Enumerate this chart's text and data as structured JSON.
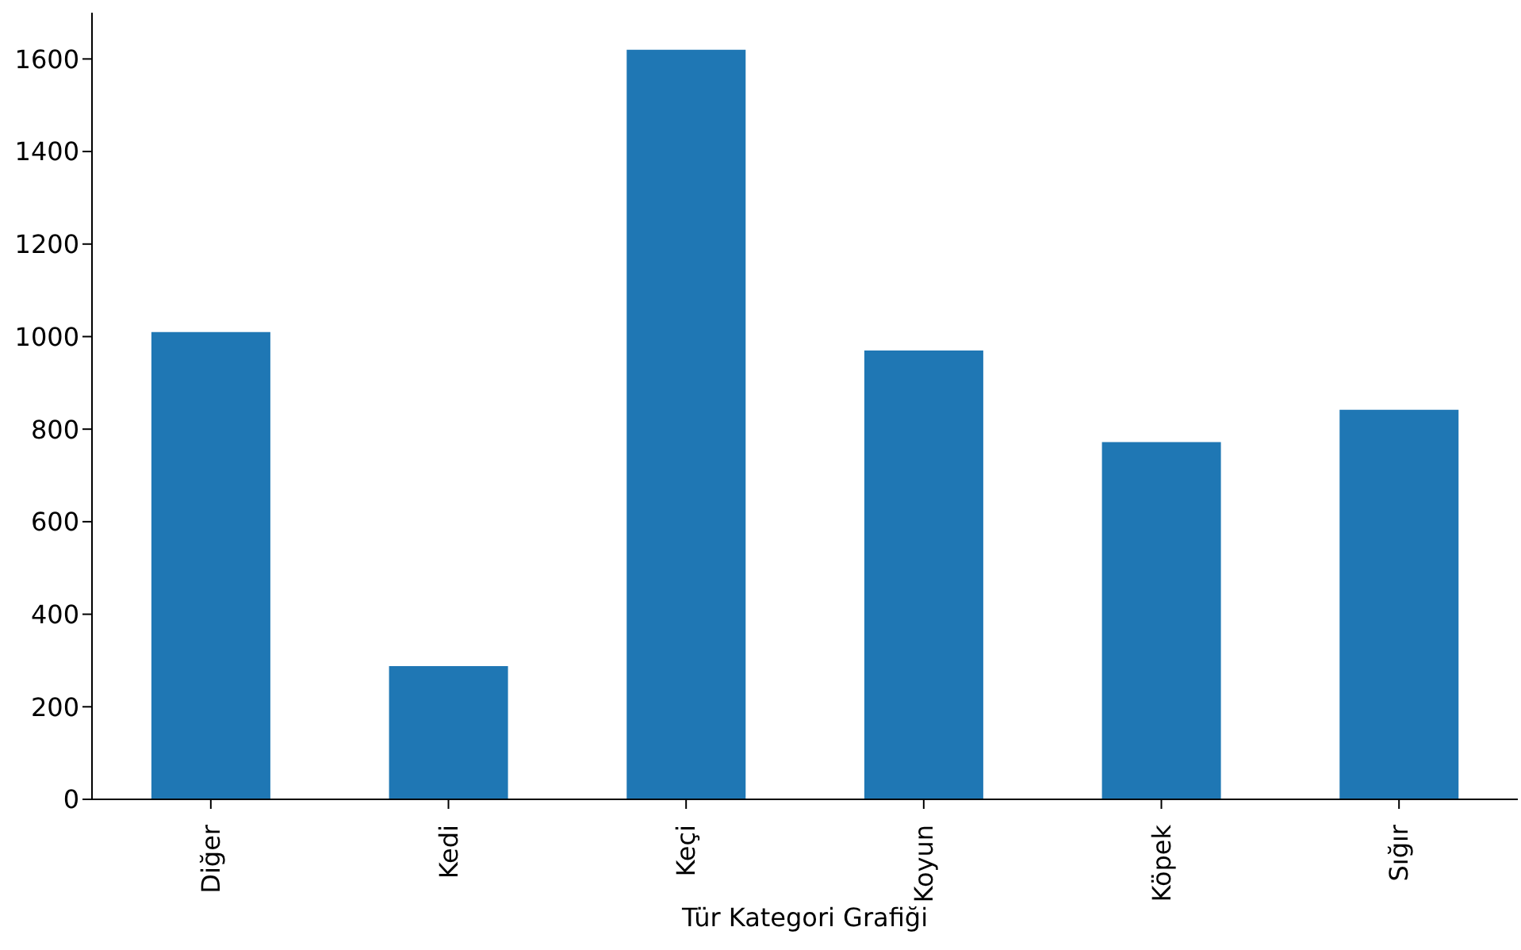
{
  "chart_data": {
    "type": "bar",
    "xlabel": "Tür Kategori Grafiği",
    "categories": [
      "Diğer",
      "Kedi",
      "Keçi",
      "Koyun",
      "Köpek",
      "Sığır"
    ],
    "values": [
      1010,
      288,
      1620,
      970,
      772,
      842
    ],
    "color": "#1f77b4",
    "ylim": [
      0,
      1700
    ],
    "yticks": [
      0,
      200,
      400,
      600,
      800,
      1000,
      1200,
      1400,
      1600
    ]
  }
}
